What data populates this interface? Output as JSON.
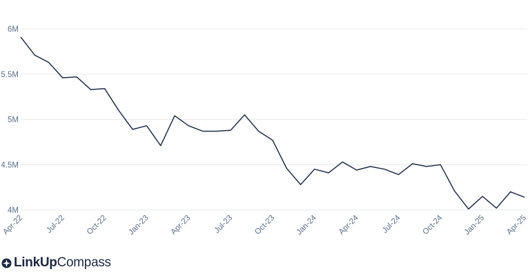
{
  "chart_data": {
    "type": "line",
    "title": "",
    "xlabel": "",
    "ylabel": "",
    "ylim": [
      3950000,
      6100000
    ],
    "y_ticks": [
      4000000,
      4500000,
      5000000,
      5500000,
      6000000
    ],
    "y_tick_labels": [
      "4M",
      "4.5M",
      "5M",
      "5.5M",
      "6M"
    ],
    "x_tick_labels": [
      "Apr-22",
      "Jul-22",
      "Oct-22",
      "Jan-23",
      "Apr-23",
      "Jul-23",
      "Oct-23",
      "Jan-24",
      "Apr-24",
      "Jul-24",
      "Oct-24",
      "Jan-25",
      "Apr-25"
    ],
    "grid": true,
    "legend": "none",
    "line_color": "#1f2d4a",
    "x": [
      "Apr-22",
      "May-22",
      "Jun-22",
      "Jul-22",
      "Aug-22",
      "Sep-22",
      "Oct-22",
      "Nov-22",
      "Dec-22",
      "Jan-23",
      "Feb-23",
      "Mar-23",
      "Apr-23",
      "May-23",
      "Jun-23",
      "Jul-23",
      "Aug-23",
      "Sep-23",
      "Oct-23",
      "Nov-23",
      "Dec-23",
      "Jan-24",
      "Feb-24",
      "Mar-24",
      "Apr-24",
      "May-24",
      "Jun-24",
      "Jul-24",
      "Aug-24",
      "Sep-24",
      "Oct-24",
      "Nov-24",
      "Dec-24",
      "Jan-25",
      "Feb-25",
      "Mar-25",
      "Apr-25"
    ],
    "series": [
      {
        "values": [
          5910000,
          5710000,
          5630000,
          5460000,
          5470000,
          5330000,
          5340000,
          5100000,
          4890000,
          4930000,
          4710000,
          5040000,
          4930000,
          4870000,
          4870000,
          4880000,
          5050000,
          4870000,
          4770000,
          4460000,
          4280000,
          4450000,
          4410000,
          4530000,
          4440000,
          4480000,
          4450000,
          4390000,
          4510000,
          4480000,
          4500000,
          4210000,
          4010000,
          4150000,
          4020000,
          4200000,
          4140000
        ]
      }
    ]
  },
  "brand": {
    "word_bold": "LinkUp",
    "word_light": "Compass",
    "accent": "#1d2a44"
  }
}
